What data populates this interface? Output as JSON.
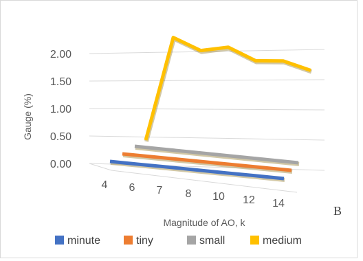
{
  "chart_data": {
    "type": "line",
    "view": "3d",
    "title": "",
    "ylabel": "Gauge (%)",
    "xlabel": "Magnitude of AO, k",
    "y_ticks": [
      "0.00",
      "0.50",
      "1.00",
      "1.50",
      "2.00"
    ],
    "ylim": [
      0,
      2.0
    ],
    "categories": [
      "4",
      "6",
      "7",
      "8",
      "10",
      "12",
      "14"
    ],
    "grid": true,
    "legend_position": "bottom",
    "series": [
      {
        "name": "minute",
        "color": "#4472C4",
        "values": [
          0,
          0,
          0,
          0,
          0,
          0,
          0
        ]
      },
      {
        "name": "tiny",
        "color": "#ED7D31",
        "values": [
          0,
          0,
          0,
          0,
          0,
          0,
          0
        ]
      },
      {
        "name": "small",
        "color": "#A5A5A5",
        "values": [
          0,
          0,
          0,
          0,
          0,
          0,
          0
        ]
      },
      {
        "name": "medium",
        "color": "#FFC000",
        "values": [
          0,
          1.82,
          1.66,
          1.78,
          1.61,
          1.67,
          1.57
        ]
      }
    ]
  },
  "corner_label": "B"
}
